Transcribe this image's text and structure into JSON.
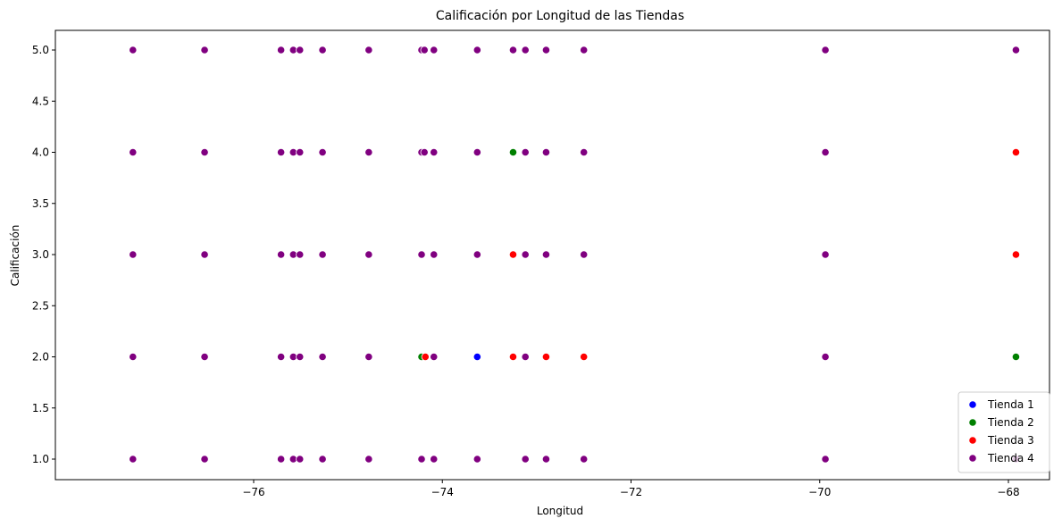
{
  "chart_data": {
    "type": "scatter",
    "title": "Calificación por Longitud de las Tiendas",
    "xlabel": "Longitud",
    "ylabel": "Calificación",
    "xlim": [
      -77.8,
      -67.5
    ],
    "ylim": [
      0.8,
      5.2
    ],
    "xticks": [
      -76,
      -74,
      -72,
      -70,
      -68
    ],
    "xtick_labels": [
      "−76",
      "−74",
      "−72",
      "−70",
      "−68"
    ],
    "yticks": [
      1.0,
      1.5,
      2.0,
      2.5,
      3.0,
      3.5,
      4.0,
      4.5,
      5.0
    ],
    "ytick_labels": [
      "1.0",
      "1.5",
      "2.0",
      "2.5",
      "3.0",
      "3.5",
      "4.0",
      "4.5",
      "5.0"
    ],
    "grid": false,
    "legend_position": "bottom-right",
    "series": [
      {
        "name": "Tienda 1",
        "color": "#0000ff",
        "points": [
          [
            -73.63,
            2
          ]
        ]
      },
      {
        "name": "Tienda 2",
        "color": "#008000",
        "points": [
          [
            -73.25,
            4
          ],
          [
            -74.22,
            2
          ],
          [
            -67.92,
            2
          ]
        ]
      },
      {
        "name": "Tienda 3",
        "color": "#ff0000",
        "points": [
          [
            -73.25,
            3
          ],
          [
            -73.25,
            2
          ],
          [
            -72.9,
            2
          ],
          [
            -72.5,
            2
          ],
          [
            -74.18,
            2
          ],
          [
            -67.92,
            4
          ],
          [
            -67.92,
            3
          ]
        ]
      },
      {
        "name": "Tienda 4",
        "color": "#800080",
        "points": [
          [
            -77.28,
            5
          ],
          [
            -77.28,
            4
          ],
          [
            -77.28,
            3
          ],
          [
            -77.28,
            2
          ],
          [
            -77.28,
            1
          ],
          [
            -76.52,
            5
          ],
          [
            -76.52,
            4
          ],
          [
            -76.52,
            3
          ],
          [
            -76.52,
            2
          ],
          [
            -76.52,
            1
          ],
          [
            -75.71,
            5
          ],
          [
            -75.71,
            4
          ],
          [
            -75.71,
            3
          ],
          [
            -75.71,
            2
          ],
          [
            -75.71,
            1
          ],
          [
            -75.58,
            5
          ],
          [
            -75.58,
            4
          ],
          [
            -75.58,
            3
          ],
          [
            -75.58,
            2
          ],
          [
            -75.58,
            1
          ],
          [
            -75.51,
            5
          ],
          [
            -75.51,
            4
          ],
          [
            -75.51,
            3
          ],
          [
            -75.51,
            2
          ],
          [
            -75.51,
            1
          ],
          [
            -75.27,
            5
          ],
          [
            -75.27,
            4
          ],
          [
            -75.27,
            3
          ],
          [
            -75.27,
            2
          ],
          [
            -75.27,
            1
          ],
          [
            -74.78,
            5
          ],
          [
            -74.78,
            4
          ],
          [
            -74.78,
            3
          ],
          [
            -74.78,
            2
          ],
          [
            -74.78,
            1
          ],
          [
            -74.22,
            5
          ],
          [
            -74.22,
            4
          ],
          [
            -74.22,
            3
          ],
          [
            -74.22,
            1
          ],
          [
            -74.19,
            5
          ],
          [
            -74.19,
            4
          ],
          [
            -74.09,
            5
          ],
          [
            -74.09,
            4
          ],
          [
            -74.09,
            3
          ],
          [
            -74.09,
            2
          ],
          [
            -74.09,
            1
          ],
          [
            -73.63,
            5
          ],
          [
            -73.63,
            4
          ],
          [
            -73.63,
            3
          ],
          [
            -73.63,
            1
          ],
          [
            -73.25,
            5
          ],
          [
            -73.12,
            5
          ],
          [
            -73.12,
            4
          ],
          [
            -73.12,
            3
          ],
          [
            -73.12,
            2
          ],
          [
            -73.12,
            1
          ],
          [
            -72.9,
            5
          ],
          [
            -72.9,
            4
          ],
          [
            -72.9,
            3
          ],
          [
            -72.9,
            1
          ],
          [
            -72.5,
            5
          ],
          [
            -72.5,
            4
          ],
          [
            -72.5,
            3
          ],
          [
            -72.5,
            1
          ],
          [
            -69.94,
            5
          ],
          [
            -69.94,
            4
          ],
          [
            -69.94,
            3
          ],
          [
            -69.94,
            2
          ],
          [
            -69.94,
            1
          ],
          [
            -67.92,
            5
          ],
          [
            -67.92,
            1
          ]
        ]
      }
    ]
  }
}
